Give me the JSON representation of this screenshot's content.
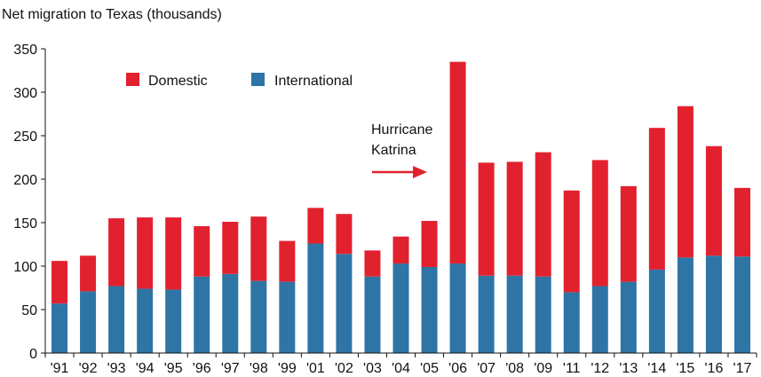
{
  "chart_data": {
    "type": "bar",
    "stacked": true,
    "title": "Net migration to Texas (thousands)",
    "xlabel": "",
    "ylabel": "",
    "ylim": [
      0,
      350
    ],
    "yticks": [
      0,
      50,
      100,
      150,
      200,
      250,
      300,
      350
    ],
    "categories": [
      "'91",
      "'92",
      "'93",
      "'94",
      "'95",
      "'96",
      "'97",
      "'98",
      "'99",
      "'01",
      "'02",
      "'03",
      "'04",
      "'05",
      "'06",
      "'07",
      "'08",
      "'09",
      "'11",
      "'12",
      "'13",
      "'14",
      "'15",
      "'16",
      "'17"
    ],
    "series": [
      {
        "name": "International",
        "color": "#2e75a6",
        "values": [
          57,
          71,
          77,
          74,
          73,
          88,
          91,
          83,
          82,
          126,
          114,
          88,
          103,
          99,
          103,
          89,
          89,
          88,
          70,
          77,
          82,
          96,
          110,
          112,
          111
        ]
      },
      {
        "name": "Domestic",
        "color": "#e2212f",
        "values": [
          49,
          41,
          78,
          82,
          83,
          58,
          60,
          74,
          47,
          41,
          46,
          30,
          31,
          53,
          232,
          130,
          131,
          143,
          117,
          145,
          110,
          163,
          174,
          126,
          79
        ]
      }
    ],
    "legend": {
      "placement": "top-left",
      "items": [
        "Domestic",
        "International"
      ]
    },
    "annotation": {
      "lines": [
        "Hurricane",
        "Katrina"
      ],
      "arrow_color": "#e2212f"
    },
    "grid": false
  }
}
